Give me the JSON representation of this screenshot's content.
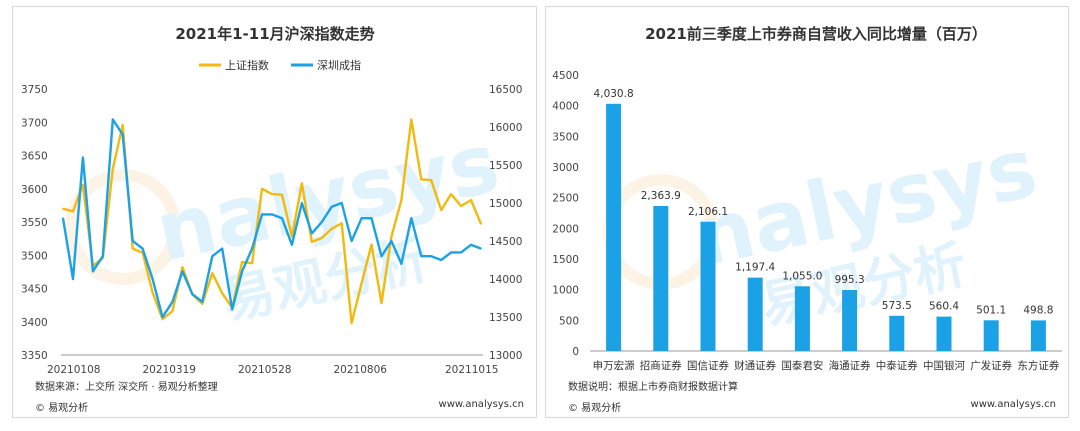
{
  "chart_data": [
    {
      "type": "line",
      "title": "2021年1-11月沪深指数走势",
      "left_axis": {
        "ylim": [
          3350,
          3750
        ],
        "ticks": [
          3350,
          3400,
          3450,
          3500,
          3550,
          3600,
          3650,
          3700,
          3750
        ]
      },
      "right_axis": {
        "ylim": [
          13000,
          16500
        ],
        "ticks": [
          13000,
          13500,
          14000,
          14500,
          15000,
          15500,
          16000,
          16500
        ]
      },
      "x_ticks": [
        "20210108",
        "20210319",
        "20210528",
        "20210806",
        "20211015"
      ],
      "legend_position": "top-right",
      "grid": false,
      "series": [
        {
          "name": "上证指数",
          "axis": "left",
          "color": "#f2b90f",
          "values": [
            3570,
            3566,
            3606,
            3484,
            3496,
            3630,
            3696,
            3510,
            3504,
            3444,
            3404,
            3416,
            3482,
            3441,
            3427,
            3473,
            3443,
            3421,
            3490,
            3488,
            3600,
            3592,
            3591,
            3528,
            3608,
            3520,
            3526,
            3540,
            3548,
            3398,
            3458,
            3516,
            3428,
            3528,
            3583,
            3704,
            3614,
            3613,
            3568,
            3592,
            3574,
            3583,
            3547
          ]
        },
        {
          "name": "深圳成指",
          "axis": "right",
          "color": "#1ba2e6",
          "values": [
            14800,
            14000,
            15600,
            14100,
            14300,
            16100,
            15900,
            14500,
            14400,
            14000,
            13500,
            13700,
            14100,
            13800,
            13700,
            14300,
            14400,
            13600,
            14100,
            14400,
            14850,
            14850,
            14800,
            14450,
            15000,
            14600,
            14750,
            14950,
            15000,
            14500,
            14800,
            14800,
            14300,
            14500,
            14200,
            14800,
            14300,
            14300,
            14250,
            14350,
            14350,
            14450,
            14400
          ]
        }
      ],
      "source": "数据来源：上交所 深交所 · 易观分析整理"
    },
    {
      "type": "bar",
      "title": "2021前三季度上市券商自营收入同比增量（百万）",
      "ylim": [
        0,
        4500
      ],
      "y_ticks": [
        0,
        500,
        1000,
        1500,
        2000,
        2500,
        3000,
        3500,
        4000,
        4500
      ],
      "grid": false,
      "bar_color": "#1ba2e6",
      "categories": [
        "申万宏源",
        "招商证券",
        "国信证券",
        "财通证券",
        "国泰君安",
        "海通证券",
        "中泰证券",
        "中国银河",
        "广发证券",
        "东方证券"
      ],
      "values": [
        4030.8,
        2363.9,
        2106.1,
        1197.4,
        1055.0,
        995.3,
        573.5,
        560.4,
        501.1,
        498.8
      ],
      "value_labels": [
        "4,030.8",
        "2,363.9",
        "2,106.1",
        "1,197.4",
        "1,055.0",
        "995.3",
        "573.5",
        "560.4",
        "501.1",
        "498.8"
      ],
      "source": "数据说明：根据上市券商财报数据计算"
    }
  ],
  "footer": {
    "copyright": "© 易观分析",
    "site": "www.analysys.cn"
  },
  "watermark": {
    "latin": "nalysys",
    "chinese": "易观分析"
  }
}
